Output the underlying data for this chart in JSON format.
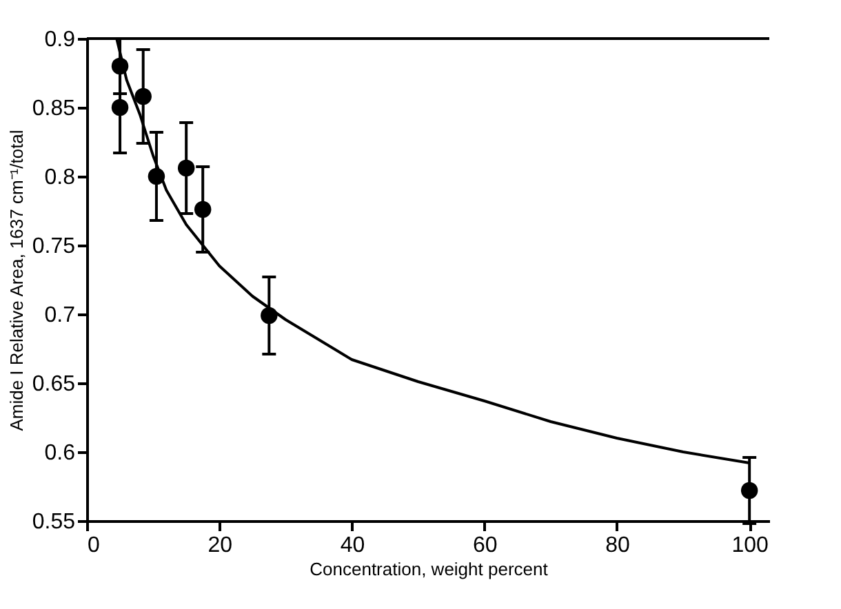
{
  "chart_data": {
    "type": "scatter",
    "xlabel": "Concentration, weight percent",
    "ylabel": "Amide I Relative Area, 1637 cm⁻¹/total",
    "xlim": [
      0,
      103
    ],
    "ylim": [
      0.55,
      0.9
    ],
    "xticks": [
      0,
      20,
      40,
      60,
      80,
      100
    ],
    "yticks": [
      0.55,
      0.6,
      0.65,
      0.7,
      0.75,
      0.8,
      0.85,
      0.9
    ],
    "grid": false,
    "marker": "circle",
    "series": [
      {
        "type": "scatter",
        "color": "#000000",
        "x": [
          5,
          5,
          8.5,
          10.5,
          15,
          17.5,
          27.5,
          100
        ],
        "values": [
          0.88,
          0.85,
          0.858,
          0.8,
          0.806,
          0.776,
          0.699,
          0.572
        ],
        "errors": [
          0.02,
          0.033,
          0.034,
          0.032,
          0.033,
          0.031,
          0.028,
          0.024
        ]
      },
      {
        "type": "line",
        "color": "#000000",
        "marker": "none",
        "line_style": "solid",
        "x": [
          4.5,
          6,
          8,
          10,
          12,
          15,
          20,
          25,
          30,
          40,
          50,
          60,
          70,
          80,
          90,
          100
        ],
        "values": [
          0.9,
          0.87,
          0.845,
          0.815,
          0.79,
          0.765,
          0.735,
          0.713,
          0.696,
          0.667,
          0.651,
          0.637,
          0.622,
          0.61,
          0.6,
          0.592
        ]
      }
    ]
  }
}
